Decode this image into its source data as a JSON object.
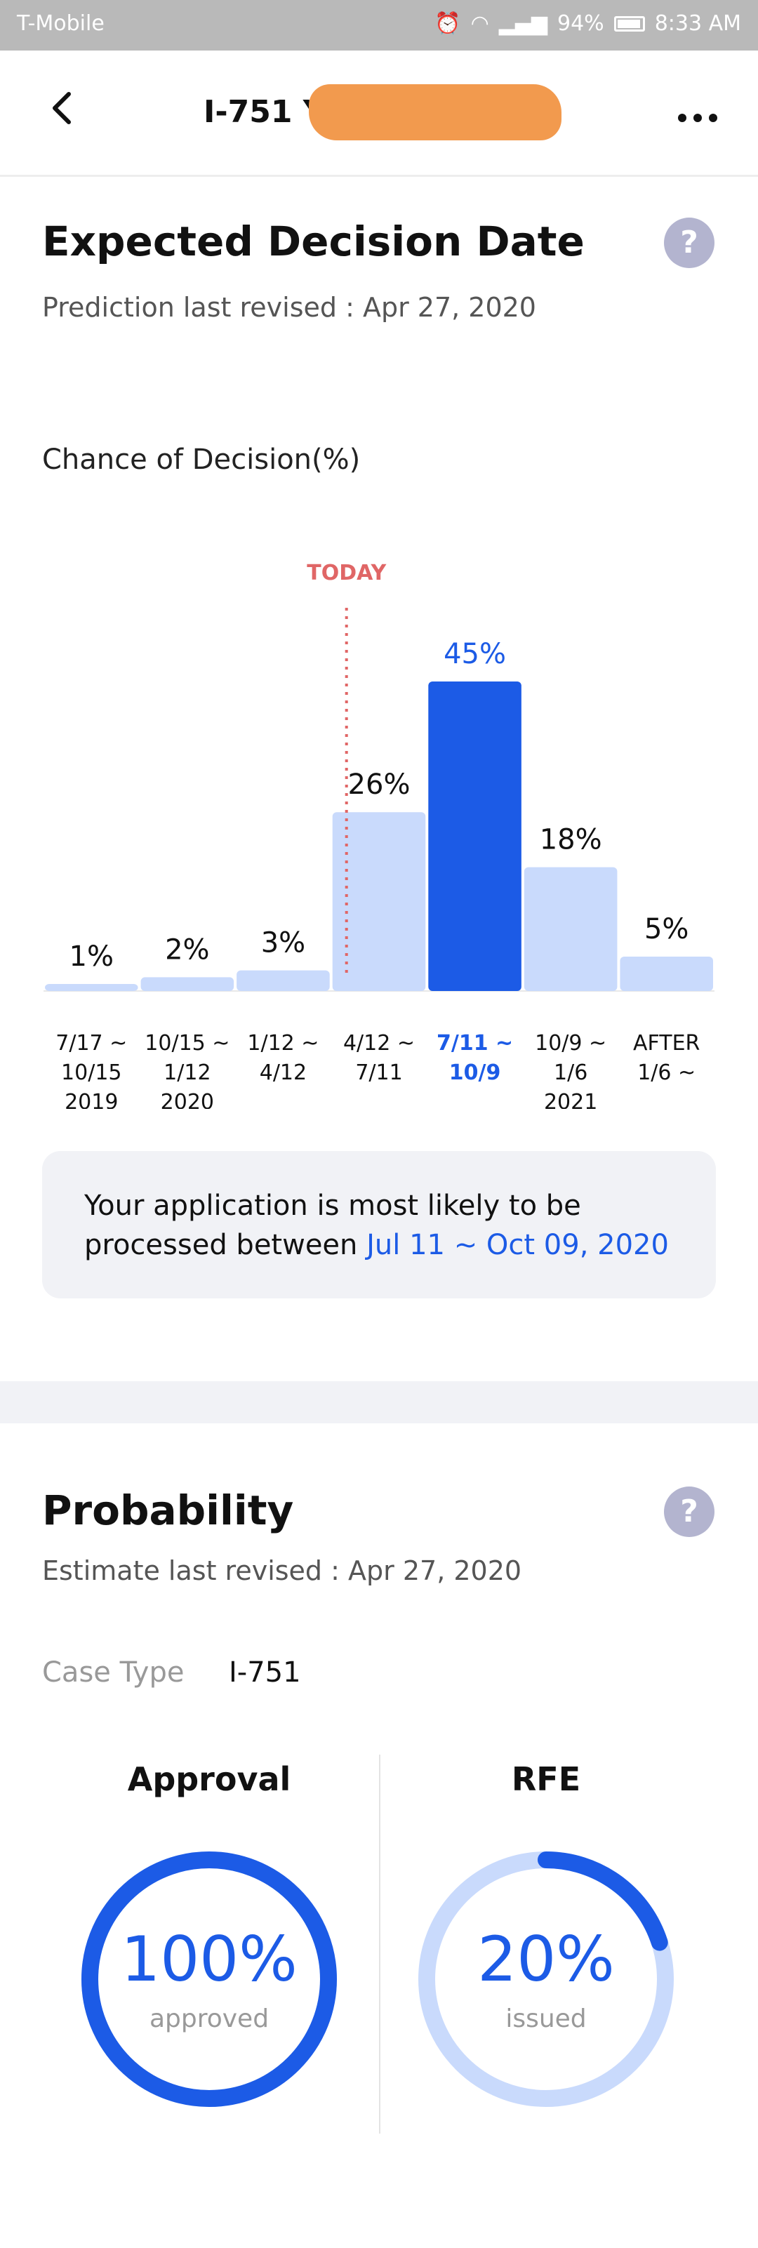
{
  "status_bar": {
    "carrier": "T-Mobile",
    "battery": "94%",
    "time": "8:33 AM"
  },
  "app_bar": {
    "title": "I-751 Y"
  },
  "decision": {
    "title": "Expected Decision Date",
    "revised": "Prediction last revised : Apr 27, 2020",
    "chart_label": "Chance of Decision(%)",
    "today_label": "TODAY",
    "callout_prefix": "Your application is most likely to be processed between ",
    "callout_range": "Jul 11 ~ Oct 09, 2020"
  },
  "chart_data": {
    "type": "bar",
    "categories": [
      [
        "7/17 ~",
        "10/15",
        "2019"
      ],
      [
        "10/15 ~",
        "1/12",
        "2020"
      ],
      [
        "1/12 ~",
        "4/12"
      ],
      [
        "4/12 ~",
        "7/11"
      ],
      [
        "7/11 ~",
        "10/9"
      ],
      [
        "10/9 ~",
        "1/6",
        "2021"
      ],
      [
        "AFTER",
        "1/6 ~"
      ]
    ],
    "values": [
      1,
      2,
      3,
      26,
      45,
      18,
      5
    ],
    "value_labels": [
      "1%",
      "2%",
      "3%",
      "26%",
      "45%",
      "18%",
      "5%"
    ],
    "highlight_index": 4,
    "today_marker_index": 3,
    "ylim": [
      0,
      50
    ],
    "colors": {
      "bar": "#c9dafc",
      "highlight": "#1c5be6",
      "today": "#e06666"
    }
  },
  "probability": {
    "title": "Probability",
    "revised": "Estimate last revised : Apr 27, 2020",
    "case_type_label": "Case Type",
    "case_type_value": "I-751",
    "approval": {
      "title": "Approval",
      "value": "100%",
      "caption": "approved",
      "fraction": 1.0
    },
    "rfe": {
      "title": "RFE",
      "value": "20%",
      "caption": "issued",
      "fraction": 0.2
    }
  },
  "colors": {
    "accent": "#1c5be6",
    "track": "#c9dafc"
  },
  "icons": {
    "back": "chevron-left-icon",
    "more": "more-horizontal-icon",
    "help": "question-icon"
  }
}
